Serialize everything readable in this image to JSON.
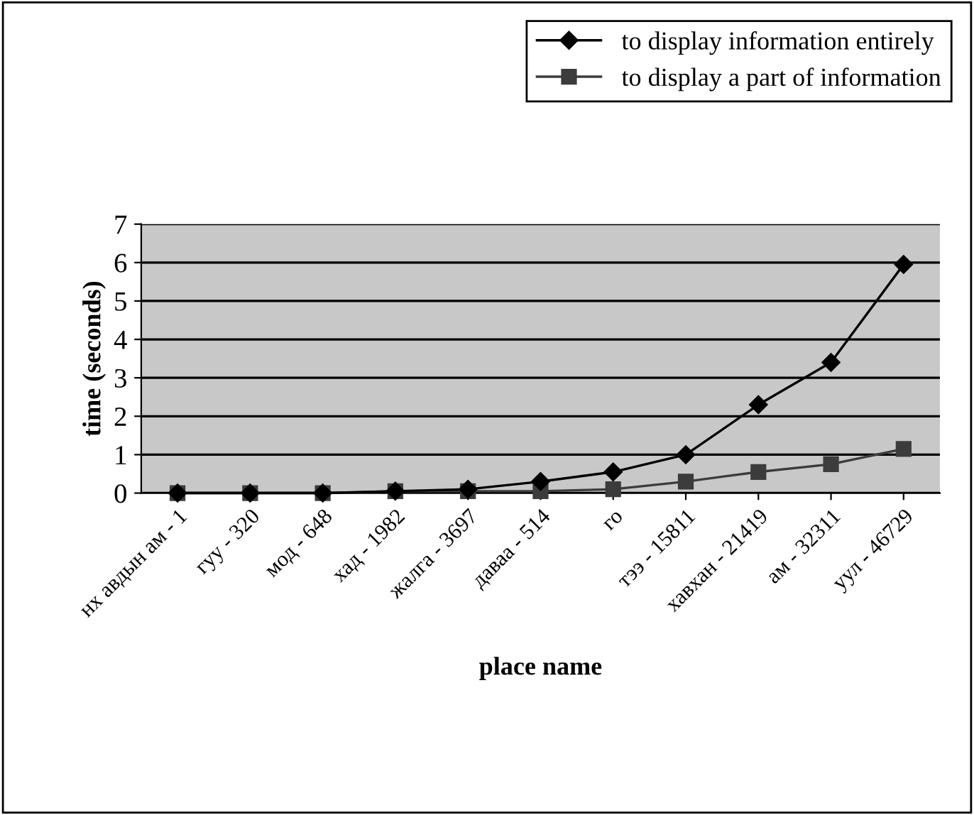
{
  "chart_data": {
    "type": "line",
    "xlabel": "place name",
    "ylabel": "time (seconds)",
    "categories": [
      "нх авдын ам - 1",
      "гуу - 320",
      "мод - 648",
      "хад - 1982",
      "жалга - 3697",
      "даваа - 514",
      "го",
      "тээ - 15811",
      "хавхан - 21419",
      "ам - 32311",
      "уул - 46729"
    ],
    "series": [
      {
        "name": "to display information entirely",
        "color": "#000000",
        "marker": "diamond",
        "values": [
          0,
          0,
          0,
          0.05,
          0.1,
          0.3,
          0.55,
          1.0,
          2.3,
          3.4,
          5.95
        ]
      },
      {
        "name": "to display a part of information",
        "color": "#3c3c3c",
        "marker": "square",
        "values": [
          0,
          0,
          0,
          0.05,
          0.05,
          0.05,
          0.1,
          0.3,
          0.55,
          0.75,
          1.15
        ]
      }
    ],
    "ylim": [
      0,
      7
    ],
    "yticks": [
      0,
      1,
      2,
      3,
      4,
      5,
      6,
      7
    ],
    "grid": "y",
    "legend": "top right",
    "line_style": "solid"
  }
}
